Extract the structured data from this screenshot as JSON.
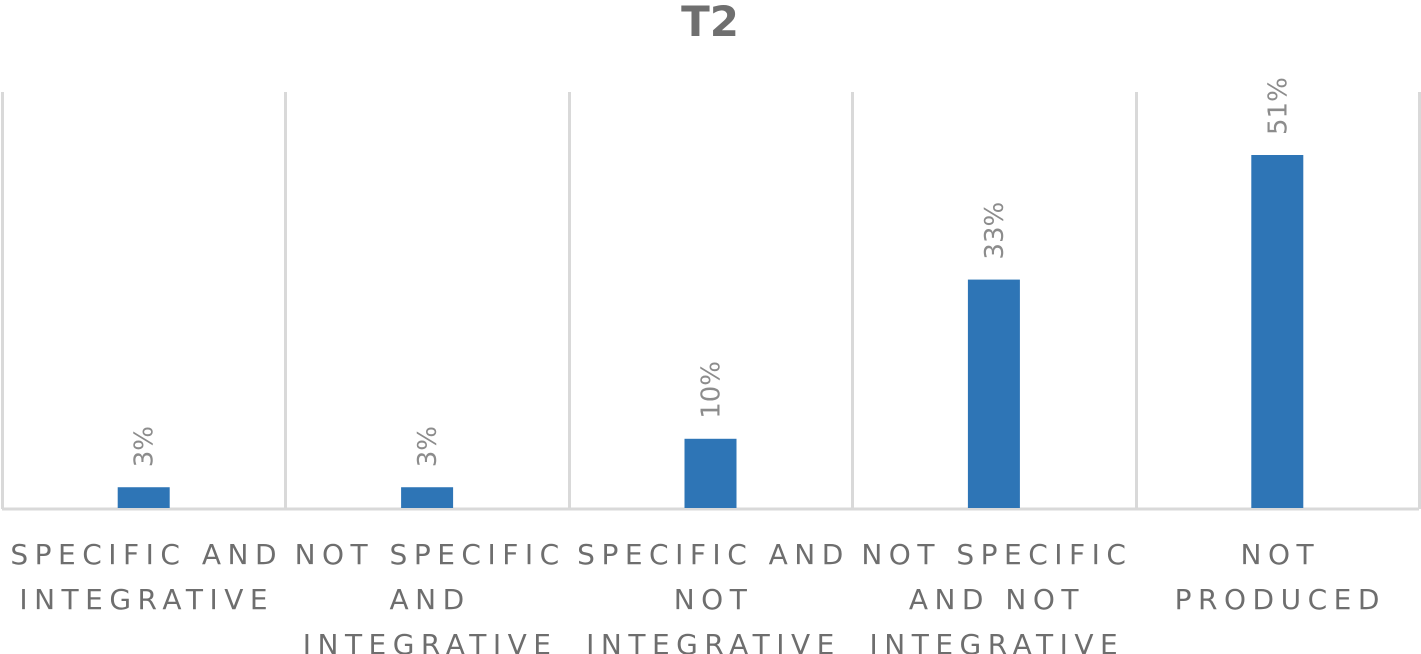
{
  "chart_data": {
    "type": "bar",
    "title": "T2",
    "categories": [
      [
        "SPECIFIC AND",
        "INTEGRATIVE"
      ],
      [
        "NOT SPECIFIC",
        "AND",
        "INTEGRATIVE"
      ],
      [
        "SPECIFIC AND",
        "NOT",
        "INTEGRATIVE"
      ],
      [
        "NOT SPECIFIC",
        "AND NOT",
        "INTEGRATIVE"
      ],
      [
        "NOT",
        "PRODUCED"
      ]
    ],
    "values": [
      3,
      3,
      10,
      33,
      51
    ],
    "data_labels": [
      "3%",
      "3%",
      "10%",
      "33%",
      "51%"
    ],
    "ylim": [
      0,
      60
    ],
    "grid": "vertical category separators",
    "legend": "none",
    "bar_color": "#2e75b6",
    "grid_color": "#d9d9d9"
  }
}
